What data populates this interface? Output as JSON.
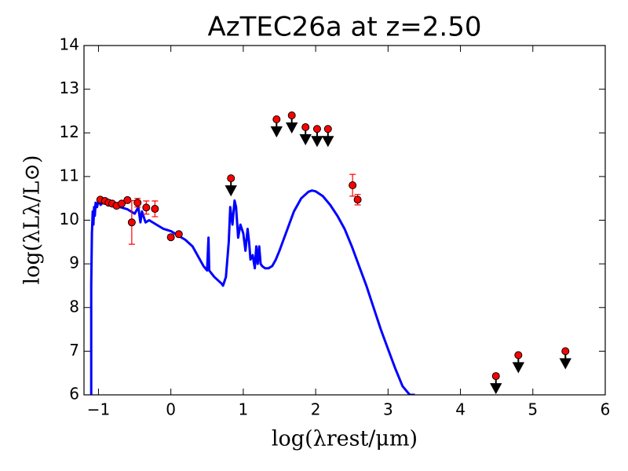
{
  "chart_data": {
    "type": "scatter",
    "title": "AzTEC26a at z=2.50",
    "xlabel": "log(λrest/μm)",
    "ylabel": "log(λLλ/L⊙)",
    "xlim": [
      -1.2,
      6
    ],
    "ylim": [
      6,
      14
    ],
    "xticks": [
      {
        "value": -1,
        "label": "−1"
      },
      0,
      1,
      2,
      3,
      4,
      5,
      6
    ],
    "yticks": [
      6,
      7,
      8,
      9,
      10,
      11,
      12,
      13,
      14
    ],
    "series": [
      {
        "type": "line",
        "color": "#0000ff",
        "x": [
          -1.1,
          -1.1,
          -1.09,
          -1.08,
          -1.07,
          -1.06,
          -1.05,
          -1.04,
          -1.02,
          -1.0,
          -0.97,
          -0.93,
          -0.9,
          -0.85,
          -0.8,
          -0.7,
          -0.6,
          -0.5,
          -0.45,
          -0.42,
          -0.4,
          -0.35,
          -0.3,
          -0.2,
          -0.1,
          0.0,
          0.1,
          0.2,
          0.3,
          0.4,
          0.45,
          0.5,
          0.52,
          0.53,
          0.6,
          0.7,
          0.72,
          0.76,
          0.8,
          0.82,
          0.85,
          0.88,
          0.9,
          0.93,
          0.96,
          1.0,
          1.03,
          1.06,
          1.08,
          1.1,
          1.13,
          1.16,
          1.18,
          1.2,
          1.22,
          1.24,
          1.26,
          1.3,
          1.35,
          1.4,
          1.45,
          1.5,
          1.6,
          1.7,
          1.8,
          1.9,
          1.95,
          2.0,
          2.1,
          2.2,
          2.3,
          2.4,
          2.5,
          2.6,
          2.7,
          2.8,
          2.9,
          3.0,
          3.1,
          3.2,
          3.3,
          3.37
        ],
        "values": [
          6.0,
          8.5,
          9.7,
          10.2,
          9.9,
          10.3,
          10.1,
          10.4,
          10.3,
          10.45,
          10.35,
          10.42,
          10.38,
          10.35,
          10.33,
          10.3,
          10.25,
          10.15,
          10.3,
          9.95,
          10.2,
          9.95,
          10.0,
          9.9,
          9.8,
          9.75,
          9.65,
          9.55,
          9.4,
          9.1,
          8.95,
          8.85,
          9.6,
          8.85,
          8.7,
          8.55,
          8.5,
          8.7,
          9.5,
          10.3,
          9.9,
          10.45,
          10.3,
          9.6,
          9.9,
          9.7,
          9.3,
          9.8,
          9.5,
          9.1,
          9.2,
          8.9,
          9.4,
          9.0,
          9.4,
          9.0,
          8.95,
          8.9,
          8.9,
          8.95,
          9.1,
          9.3,
          9.75,
          10.2,
          10.5,
          10.65,
          10.68,
          10.66,
          10.55,
          10.35,
          10.1,
          9.8,
          9.4,
          8.95,
          8.5,
          8.0,
          7.5,
          7.05,
          6.6,
          6.2,
          6.0,
          6.0
        ]
      },
      {
        "type": "points",
        "color": "#ff0000",
        "error_color": "#ff0000",
        "x": [
          -0.975,
          -0.91,
          -0.86,
          -0.81,
          -0.75,
          -0.68,
          -0.6,
          -0.54,
          -0.46,
          -0.34,
          -0.22,
          0.0,
          0.11,
          2.51,
          2.58
        ],
        "values": [
          10.47,
          10.44,
          10.4,
          10.38,
          10.33,
          10.38,
          10.46,
          9.95,
          10.4,
          10.29,
          10.26,
          9.61,
          9.68,
          10.8,
          10.47
        ],
        "errors": [
          0.03,
          0.03,
          0.03,
          0.03,
          0.03,
          0.03,
          0.04,
          0.5,
          0.1,
          0.15,
          0.18,
          0.05,
          0.04,
          0.25,
          0.12
        ]
      },
      {
        "type": "upper_limits",
        "color": "#ff0000",
        "arrow_color": "#000000",
        "x": [
          0.83,
          1.46,
          1.67,
          1.86,
          2.02,
          2.17,
          4.49,
          4.8,
          5.45
        ],
        "values": [
          10.96,
          12.31,
          12.4,
          12.13,
          12.09,
          12.09,
          6.43,
          6.91,
          7.0
        ]
      }
    ]
  }
}
